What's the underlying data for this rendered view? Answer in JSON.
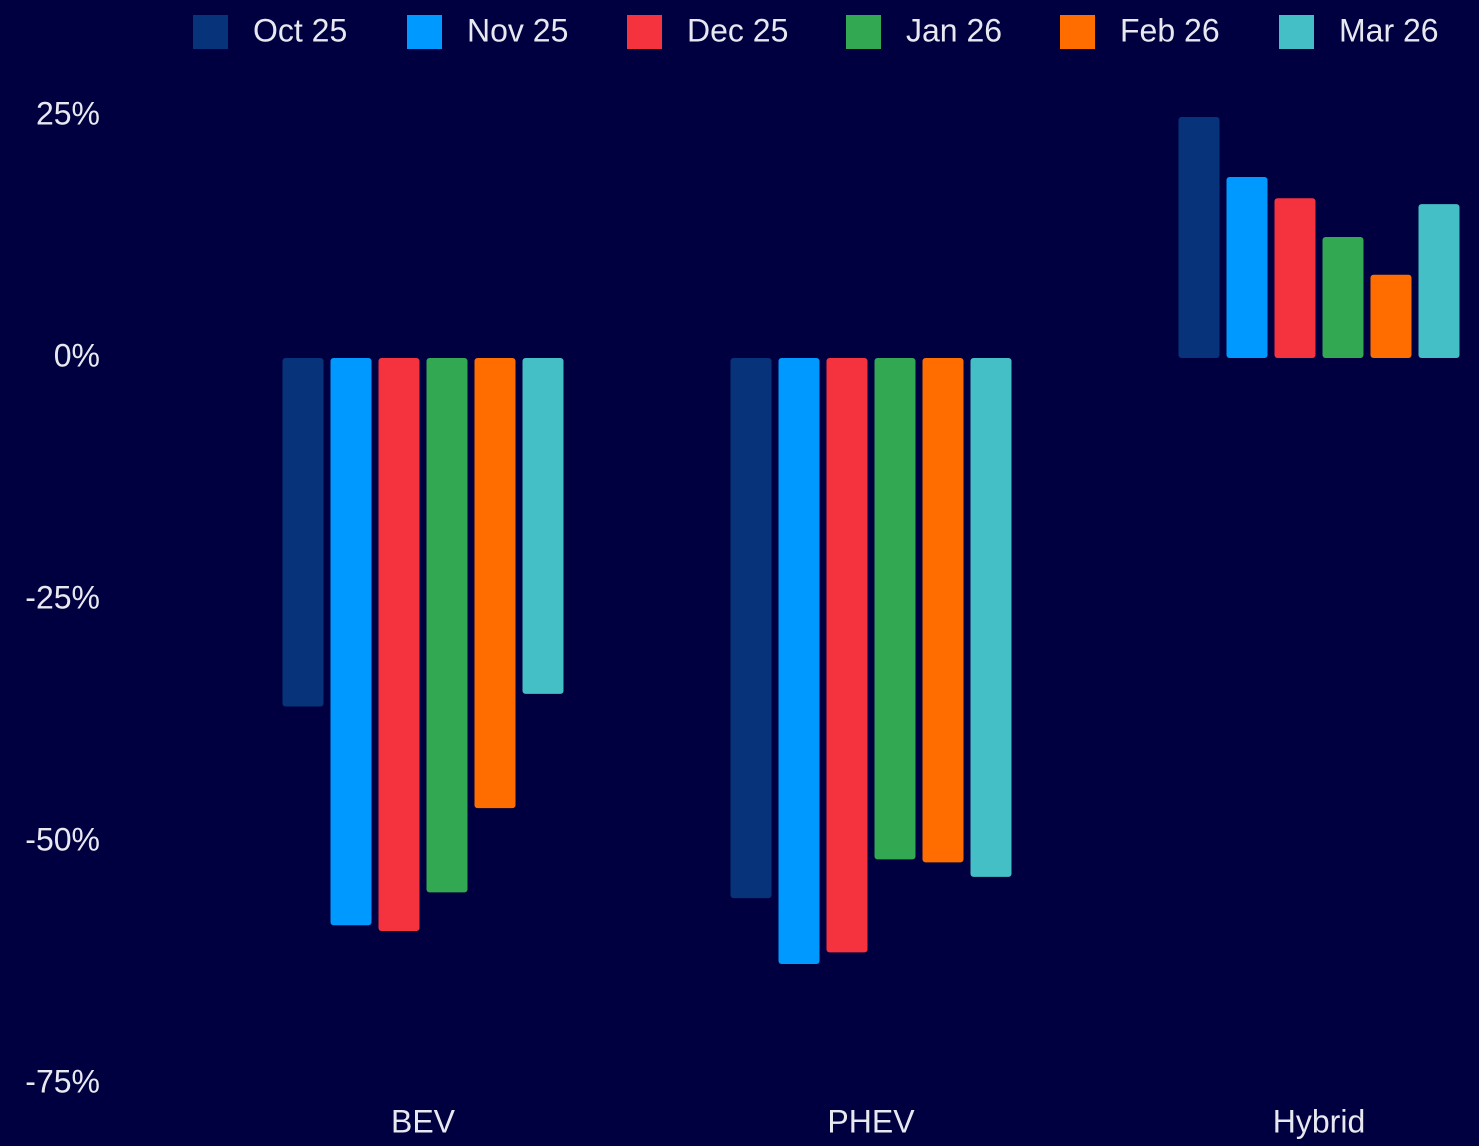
{
  "chart_data": {
    "type": "bar",
    "categories": [
      "BEV",
      "PHEV",
      "Hybrid"
    ],
    "series": [
      {
        "name": "Oct 25",
        "color": "#06337a",
        "values": [
          -36,
          -55.8,
          24.9
        ]
      },
      {
        "name": "Nov 25",
        "color": "#0099ff",
        "values": [
          -58.6,
          -62.6,
          18.7
        ]
      },
      {
        "name": "Dec 25",
        "color": "#f5333f",
        "values": [
          -59.2,
          -61.4,
          16.5
        ]
      },
      {
        "name": "Jan 26",
        "color": "#33a852",
        "values": [
          -55.2,
          -51.8,
          12.5
        ]
      },
      {
        "name": "Feb 26",
        "color": "#ff6c00",
        "values": [
          -46.5,
          -52.1,
          8.6
        ]
      },
      {
        "name": "Mar 26",
        "color": "#45bfc6",
        "values": [
          -34.7,
          -53.6,
          15.9
        ]
      }
    ],
    "ylim": [
      -75,
      25
    ],
    "yticks": [
      {
        "value": 25,
        "label": "25%"
      },
      {
        "value": 0,
        "label": "0%"
      },
      {
        "value": -25,
        "label": "-25%"
      },
      {
        "value": -50,
        "label": "-50%"
      },
      {
        "value": -75,
        "label": "-75%"
      }
    ],
    "grid": false,
    "legend": "top"
  }
}
